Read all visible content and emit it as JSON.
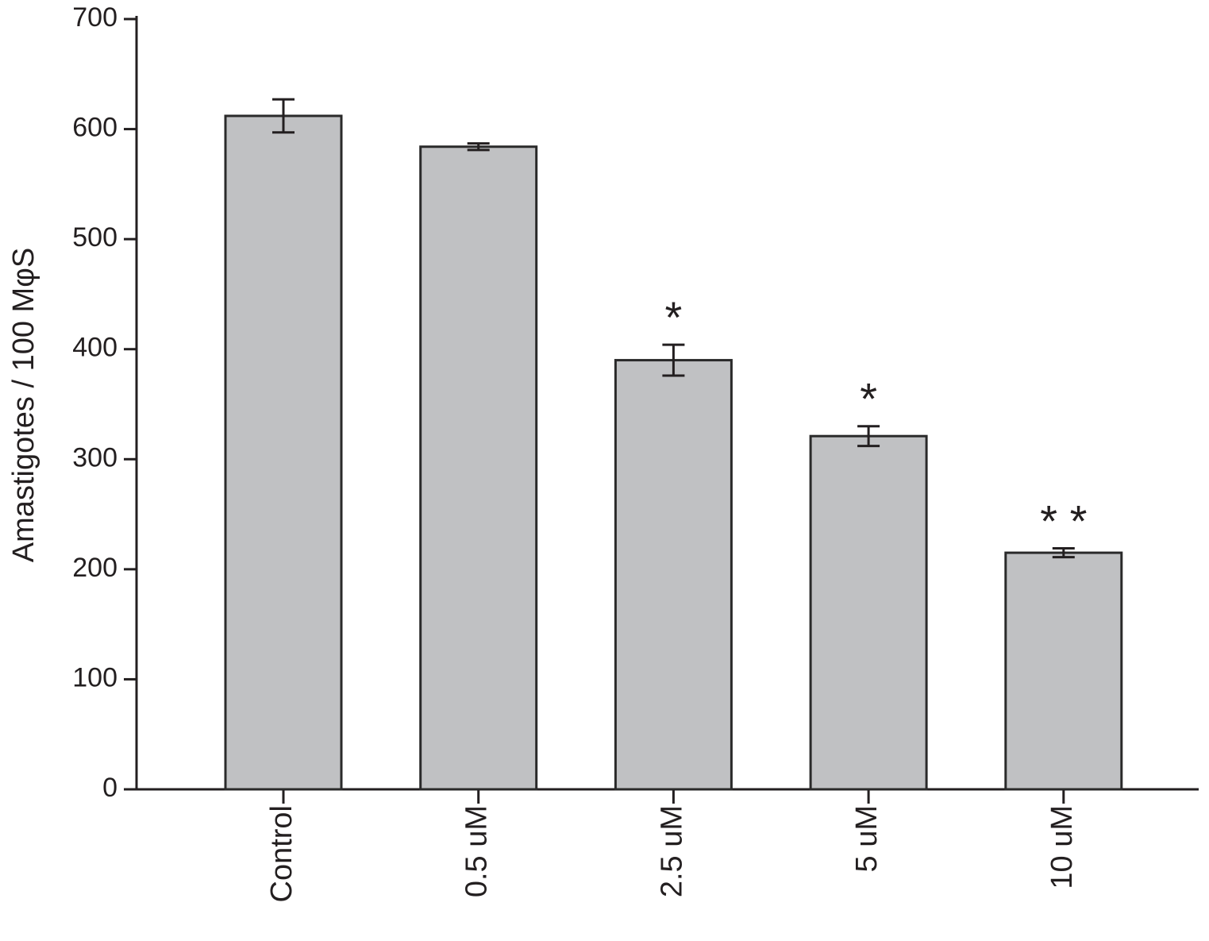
{
  "chart_data": {
    "type": "bar",
    "y_label": "Amastigotes / 100 MφS",
    "categories": [
      "Control",
      "0.5 uM",
      "2.5 uM",
      "5 uM",
      "10 uM"
    ],
    "values": [
      612,
      584,
      390,
      321,
      215
    ],
    "errors": [
      15,
      3,
      14,
      9,
      4
    ],
    "annotations": [
      null,
      null,
      "*",
      "*",
      "* *"
    ],
    "color": "#c0c1c3",
    "ylim": [
      0,
      700
    ],
    "yticks": [
      0,
      100,
      200,
      300,
      400,
      500,
      600,
      700
    ],
    "grid": false
  }
}
